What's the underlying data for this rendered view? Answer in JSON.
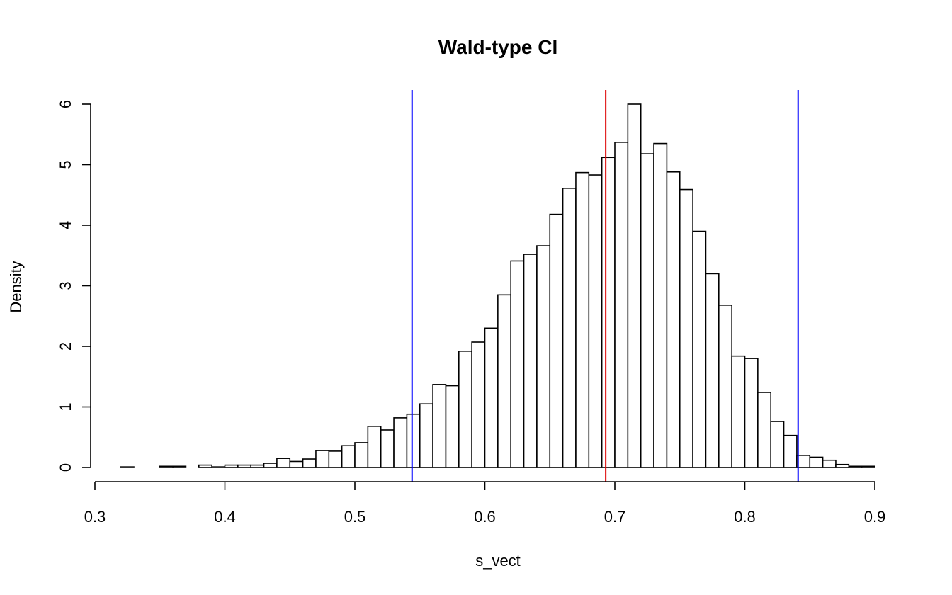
{
  "chart_data": {
    "type": "bar",
    "title": "Wald-type CI",
    "xlabel": "s_vect",
    "ylabel": "Density",
    "xlim": [
      0.3,
      0.9
    ],
    "ylim": [
      0,
      6
    ],
    "x_ticks": [
      0.3,
      0.4,
      0.5,
      0.6,
      0.7,
      0.8,
      0.9
    ],
    "y_ticks": [
      0,
      1,
      2,
      3,
      4,
      5,
      6
    ],
    "bin_start": 0.32,
    "bin_width": 0.01,
    "values": [
      0.01,
      0.0,
      0.0,
      0.02,
      0.02,
      0.0,
      0.04,
      0.01,
      0.04,
      0.04,
      0.04,
      0.07,
      0.15,
      0.1,
      0.14,
      0.28,
      0.27,
      0.36,
      0.41,
      0.68,
      0.62,
      0.82,
      0.88,
      1.05,
      1.37,
      1.35,
      1.92,
      2.07,
      2.3,
      2.85,
      3.41,
      3.52,
      3.66,
      4.18,
      4.61,
      4.87,
      4.83,
      5.12,
      5.37,
      6.0,
      5.18,
      5.35,
      4.88,
      4.59,
      3.9,
      3.2,
      2.68,
      1.84,
      1.8,
      1.24,
      0.76,
      0.53,
      0.2,
      0.17,
      0.12,
      0.05,
      0.02,
      0.02
    ],
    "vlines": [
      {
        "x": 0.544,
        "color": "#0000ff"
      },
      {
        "x": 0.693,
        "color": "#dd0000"
      },
      {
        "x": 0.841,
        "color": "#0000ff"
      }
    ]
  }
}
